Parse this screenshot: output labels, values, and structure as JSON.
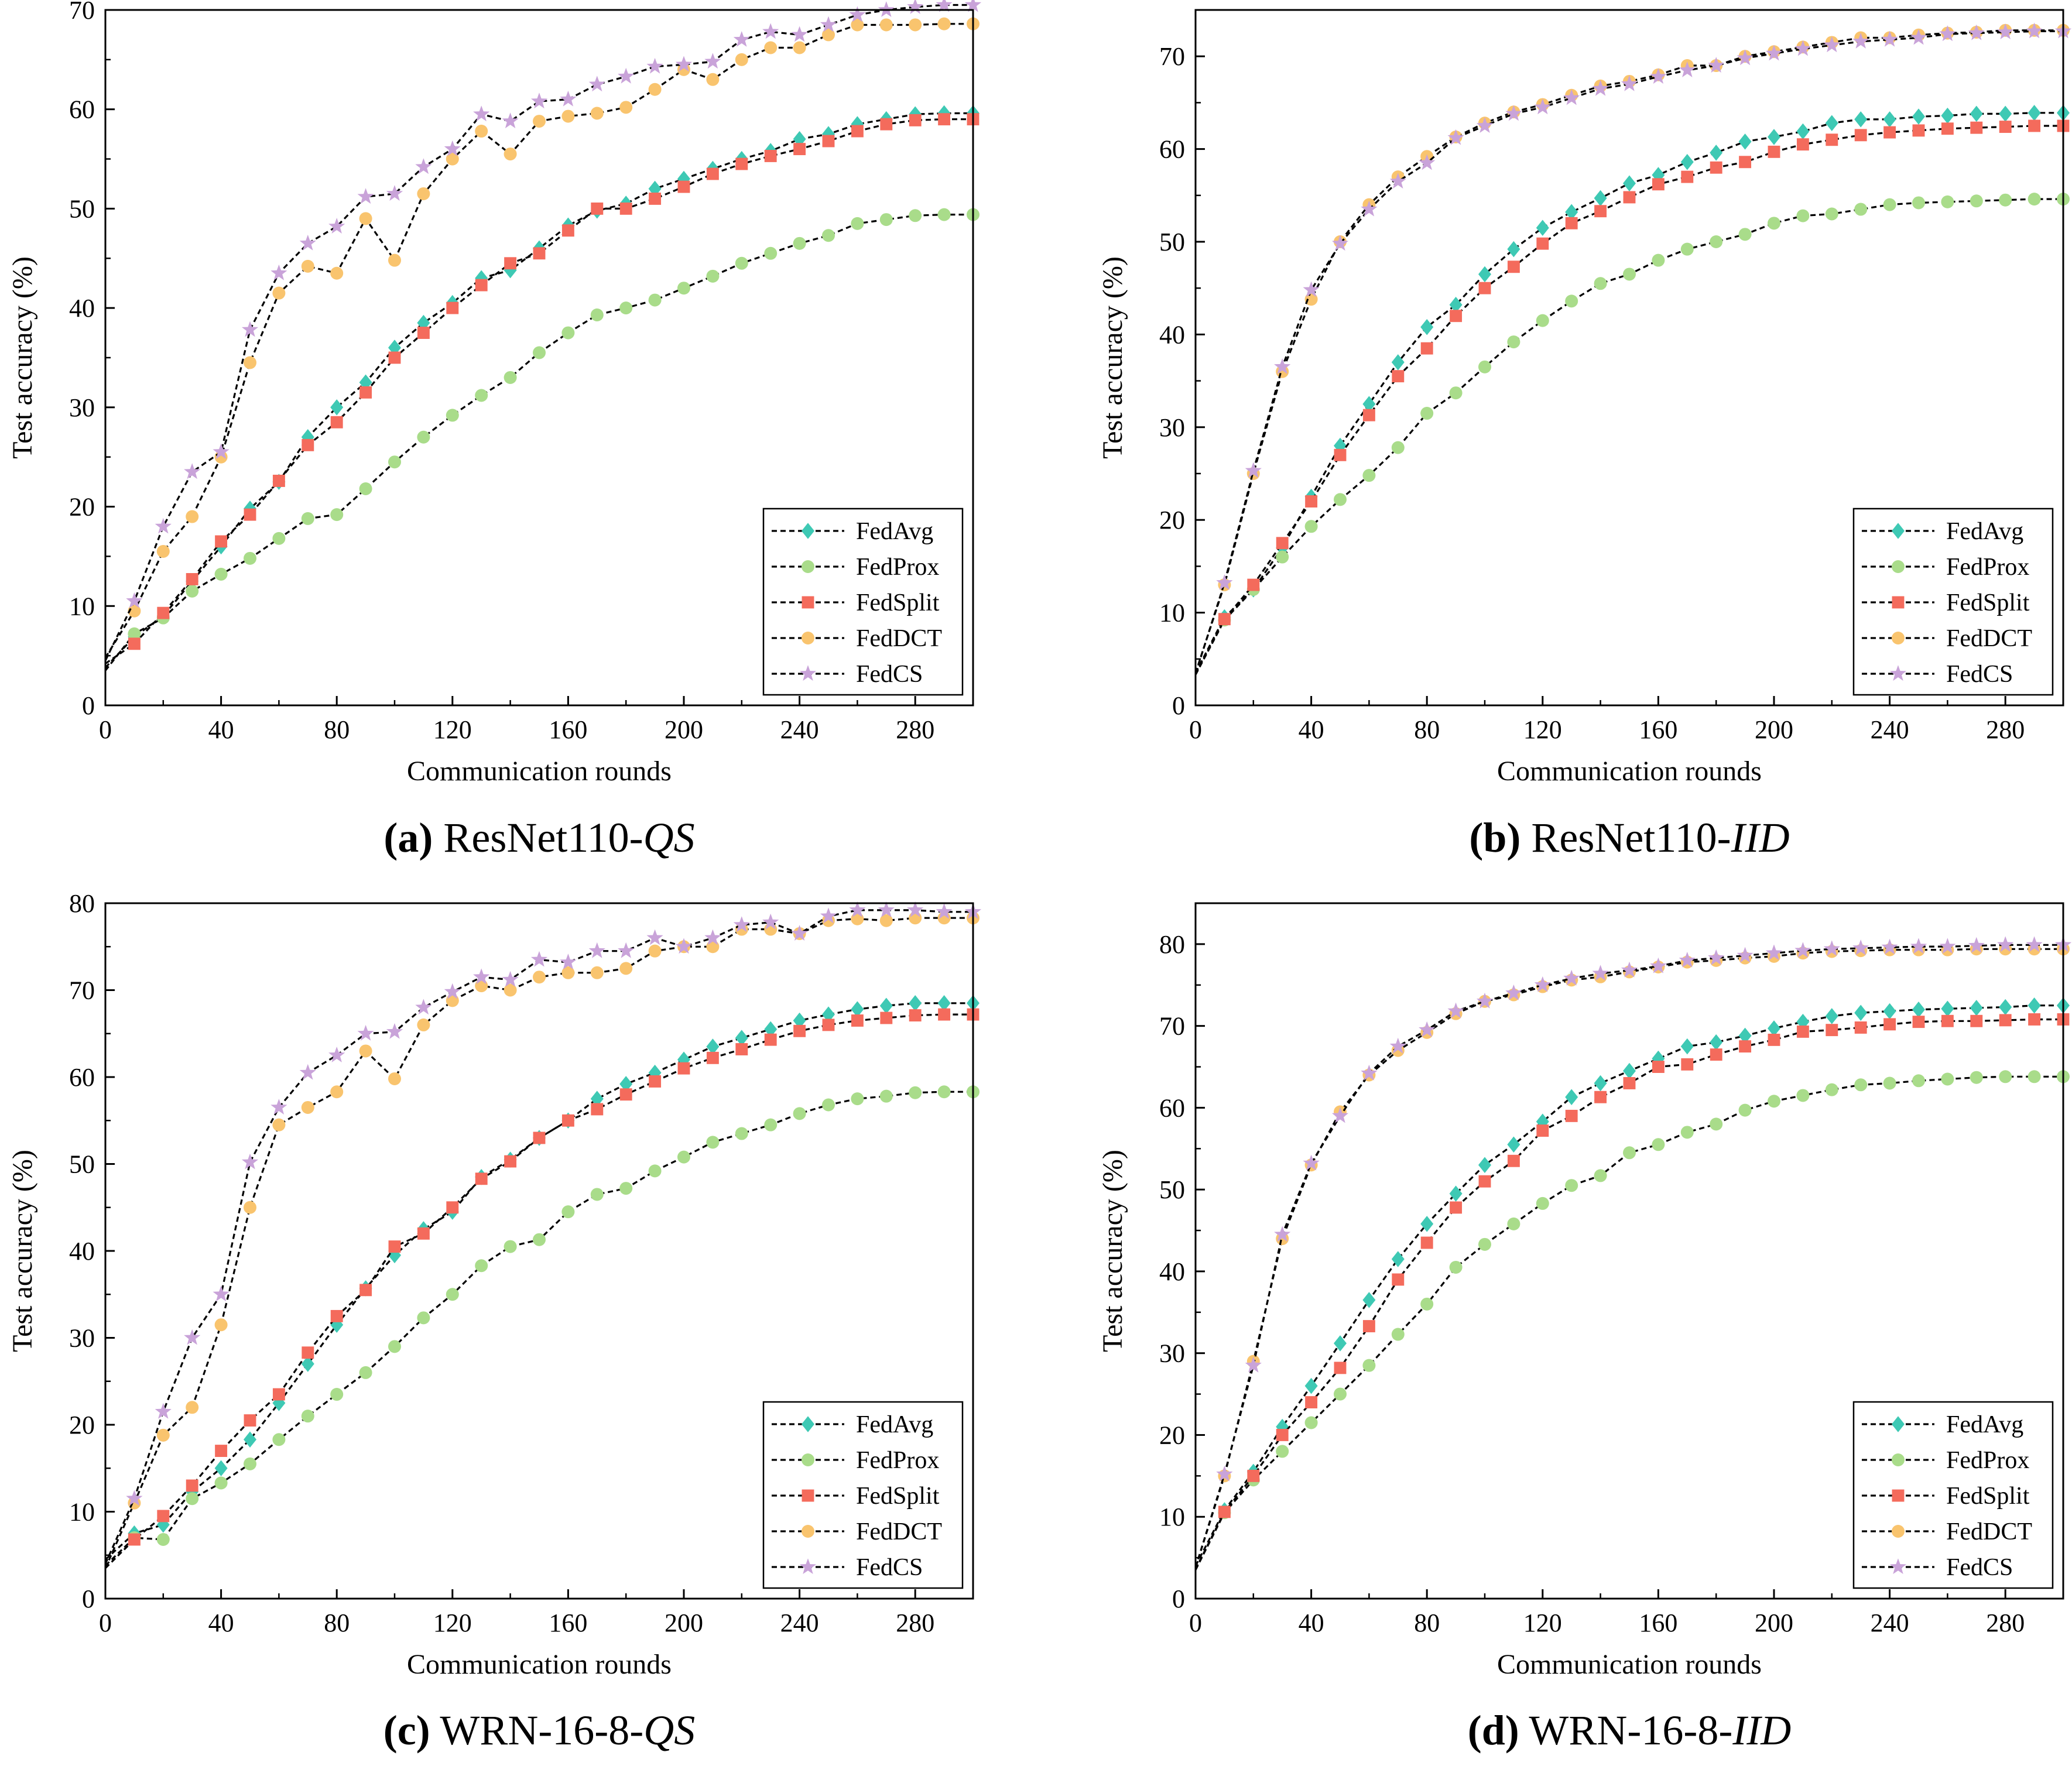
{
  "colors": {
    "FedAvg": "#3ec9b4",
    "FedProx": "#a9dc8a",
    "FedSplit": "#f46b5c",
    "FedDCT": "#f9c46e",
    "FedCS": "#c9a3d9",
    "line": "#000000"
  },
  "markers": {
    "FedAvg": "diamond",
    "FedProx": "circle",
    "FedSplit": "square",
    "FedDCT": "circle",
    "FedCS": "star"
  },
  "chart_data": [
    {
      "type": "line",
      "caption": {
        "letter": "(a)",
        "text": " ResNet110-",
        "italic": "QS"
      },
      "xlabel": "Communication rounds",
      "ylabel": "Test accuracy (%)",
      "xlim": [
        0,
        300
      ],
      "ylim": [
        0,
        70
      ],
      "xticks": [
        "0",
        "40",
        "80",
        "120",
        "160",
        "200",
        "240",
        "280"
      ],
      "yticks": [
        "0",
        "10",
        "20",
        "30",
        "40",
        "50",
        "60",
        "70"
      ],
      "legend": "bottom-right",
      "x": [
        0,
        10,
        20,
        30,
        40,
        50,
        60,
        70,
        80,
        90,
        100,
        110,
        120,
        130,
        140,
        150,
        160,
        170,
        180,
        190,
        200,
        210,
        220,
        230,
        240,
        250,
        260,
        270,
        280,
        290,
        300
      ],
      "series": [
        {
          "name": "FedAvg",
          "values": [
            3.8,
            6.9,
            9.0,
            12.5,
            16.0,
            19.8,
            22.5,
            27.0,
            30.0,
            32.5,
            36.0,
            38.5,
            40.5,
            43.0,
            43.8,
            46.0,
            48.3,
            49.8,
            50.5,
            52.0,
            53.0,
            54.0,
            55.0,
            55.8,
            57.0,
            57.5,
            58.5,
            59.0,
            59.5,
            59.6,
            59.6
          ]
        },
        {
          "name": "FedProx",
          "values": [
            3.5,
            7.2,
            8.8,
            11.5,
            13.2,
            14.8,
            16.8,
            18.8,
            19.2,
            21.8,
            24.5,
            27.0,
            29.2,
            31.2,
            33.0,
            35.5,
            37.5,
            39.3,
            40.0,
            40.8,
            42.0,
            43.2,
            44.5,
            45.5,
            46.5,
            47.3,
            48.5,
            48.9,
            49.3,
            49.4,
            49.4
          ]
        },
        {
          "name": "FedSplit",
          "values": [
            4.2,
            6.2,
            9.3,
            12.7,
            16.5,
            19.2,
            22.6,
            26.2,
            28.5,
            31.5,
            35.0,
            37.5,
            40.0,
            42.3,
            44.5,
            45.5,
            47.8,
            50.0,
            50.0,
            51.0,
            52.2,
            53.5,
            54.5,
            55.3,
            56.0,
            56.8,
            57.8,
            58.5,
            58.9,
            59.0,
            59.0
          ]
        },
        {
          "name": "FedDCT",
          "values": [
            4.8,
            9.5,
            15.5,
            19.0,
            25.0,
            34.5,
            41.5,
            44.2,
            43.5,
            49.0,
            44.8,
            51.5,
            55.0,
            57.8,
            55.5,
            58.8,
            59.3,
            59.6,
            60.2,
            62.0,
            64.0,
            63.0,
            65.0,
            66.2,
            66.2,
            67.5,
            68.5,
            68.5,
            68.5,
            68.6,
            68.6
          ]
        },
        {
          "name": "FedCS",
          "values": [
            4.5,
            10.5,
            18.0,
            23.5,
            25.5,
            37.8,
            43.5,
            46.5,
            48.2,
            51.2,
            51.5,
            54.2,
            56.0,
            59.5,
            58.8,
            60.8,
            61.0,
            62.5,
            63.3,
            64.3,
            64.5,
            64.8,
            67.0,
            67.8,
            67.5,
            68.5,
            69.5,
            70.0,
            70.3,
            70.5,
            70.5
          ]
        }
      ]
    },
    {
      "type": "line",
      "caption": {
        "letter": "(b)",
        "text": " ResNet110-",
        "italic": "IID"
      },
      "xlabel": "Communication rounds",
      "ylabel": "Test accuracy (%)",
      "xlim": [
        0,
        300
      ],
      "ylim": [
        0,
        75
      ],
      "xticks": [
        "0",
        "40",
        "80",
        "120",
        "160",
        "200",
        "240",
        "280"
      ],
      "yticks": [
        "0",
        "10",
        "20",
        "30",
        "40",
        "50",
        "60",
        "70"
      ],
      "legend": "bottom-right",
      "x": [
        0,
        10,
        20,
        30,
        40,
        50,
        60,
        70,
        80,
        90,
        100,
        110,
        120,
        130,
        140,
        150,
        160,
        170,
        180,
        190,
        200,
        210,
        220,
        230,
        240,
        250,
        260,
        270,
        280,
        290,
        300
      ],
      "series": [
        {
          "name": "FedAvg",
          "values": [
            3.5,
            9.5,
            12.5,
            17.0,
            22.5,
            28.0,
            32.5,
            37.0,
            40.8,
            43.2,
            46.5,
            49.2,
            51.5,
            53.2,
            54.7,
            56.3,
            57.2,
            58.6,
            59.6,
            60.8,
            61.3,
            61.9,
            62.8,
            63.2,
            63.2,
            63.5,
            63.6,
            63.8,
            63.8,
            63.9,
            63.9
          ]
        },
        {
          "name": "FedProx",
          "values": [
            3.3,
            9.2,
            12.5,
            16.0,
            19.3,
            22.2,
            24.8,
            27.8,
            31.5,
            33.7,
            36.5,
            39.2,
            41.5,
            43.6,
            45.5,
            46.5,
            48.0,
            49.2,
            50.0,
            50.8,
            52.0,
            52.8,
            53.0,
            53.5,
            54.0,
            54.2,
            54.3,
            54.4,
            54.5,
            54.6,
            54.6
          ]
        },
        {
          "name": "FedSplit",
          "values": [
            3.4,
            9.3,
            13.0,
            17.5,
            22.0,
            27.0,
            31.3,
            35.5,
            38.5,
            42.0,
            45.0,
            47.3,
            49.8,
            52.0,
            53.3,
            54.8,
            56.2,
            57.0,
            58.0,
            58.6,
            59.7,
            60.5,
            61.0,
            61.5,
            61.8,
            62.0,
            62.2,
            62.3,
            62.4,
            62.5,
            62.5
          ]
        },
        {
          "name": "FedDCT",
          "values": [
            3.5,
            13.0,
            25.0,
            36.0,
            43.8,
            50.0,
            54.0,
            57.0,
            59.2,
            61.3,
            62.8,
            64.0,
            64.8,
            65.8,
            66.8,
            67.3,
            68.0,
            69.0,
            69.0,
            70.0,
            70.5,
            71.0,
            71.5,
            72.0,
            72.0,
            72.3,
            72.5,
            72.6,
            72.8,
            72.8,
            72.8
          ]
        },
        {
          "name": "FedCS",
          "values": [
            3.4,
            13.2,
            25.3,
            36.5,
            44.8,
            49.8,
            53.5,
            56.5,
            58.5,
            61.2,
            62.5,
            63.8,
            64.5,
            65.5,
            66.5,
            67.0,
            67.8,
            68.5,
            69.0,
            69.8,
            70.3,
            70.8,
            71.2,
            71.6,
            71.8,
            72.0,
            72.4,
            72.5,
            72.6,
            72.7,
            72.7
          ]
        }
      ]
    },
    {
      "type": "line",
      "caption": {
        "letter": "(c)",
        "text": " WRN-16-8-",
        "italic": "QS"
      },
      "xlabel": "Communication rounds",
      "ylabel": "Test accuracy (%)",
      "xlim": [
        0,
        300
      ],
      "ylim": [
        0,
        80
      ],
      "xticks": [
        "0",
        "40",
        "80",
        "120",
        "160",
        "200",
        "240",
        "280"
      ],
      "yticks": [
        "0",
        "10",
        "20",
        "30",
        "40",
        "50",
        "60",
        "70",
        "80"
      ],
      "legend": "bottom-right",
      "x": [
        0,
        10,
        20,
        30,
        40,
        50,
        60,
        70,
        80,
        90,
        100,
        110,
        120,
        130,
        140,
        150,
        160,
        170,
        180,
        190,
        200,
        210,
        220,
        230,
        240,
        250,
        260,
        270,
        280,
        290,
        300
      ],
      "series": [
        {
          "name": "FedAvg",
          "values": [
            4.5,
            7.5,
            8.5,
            12.3,
            15.0,
            18.3,
            22.5,
            27.0,
            31.5,
            35.7,
            39.5,
            42.5,
            44.5,
            48.5,
            50.5,
            53.0,
            55.0,
            57.5,
            59.2,
            60.5,
            62.0,
            63.5,
            64.5,
            65.5,
            66.5,
            67.2,
            67.8,
            68.2,
            68.5,
            68.5,
            68.5
          ]
        },
        {
          "name": "FedProx",
          "values": [
            3.8,
            7.0,
            6.8,
            11.5,
            13.3,
            15.5,
            18.3,
            21.0,
            23.5,
            26.0,
            29.0,
            32.3,
            35.0,
            38.3,
            40.5,
            41.3,
            44.5,
            46.5,
            47.2,
            49.2,
            50.8,
            52.5,
            53.5,
            54.5,
            55.8,
            56.8,
            57.5,
            57.8,
            58.2,
            58.3,
            58.3
          ]
        },
        {
          "name": "FedSplit",
          "values": [
            3.5,
            6.8,
            9.5,
            13.0,
            17.0,
            20.5,
            23.5,
            28.3,
            32.5,
            35.5,
            40.5,
            42.0,
            45.0,
            48.3,
            50.3,
            53.0,
            55.0,
            56.3,
            58.0,
            59.5,
            61.0,
            62.2,
            63.2,
            64.3,
            65.3,
            66.0,
            66.5,
            66.8,
            67.1,
            67.2,
            67.2
          ]
        },
        {
          "name": "FedDCT",
          "values": [
            3.5,
            11.0,
            18.8,
            22.0,
            31.5,
            45.0,
            54.5,
            56.5,
            58.3,
            63.0,
            59.8,
            66.0,
            68.8,
            70.5,
            70.0,
            71.5,
            72.0,
            72.0,
            72.5,
            74.5,
            75.0,
            75.0,
            77.0,
            77.0,
            76.5,
            78.0,
            78.2,
            78.0,
            78.3,
            78.3,
            78.3
          ]
        },
        {
          "name": "FedCS",
          "values": [
            4.0,
            11.5,
            21.5,
            30.0,
            35.0,
            50.2,
            56.5,
            60.5,
            62.5,
            65.0,
            65.2,
            68.0,
            69.8,
            71.5,
            71.2,
            73.5,
            73.2,
            74.5,
            74.5,
            76.0,
            75.0,
            76.0,
            77.5,
            77.8,
            76.5,
            78.5,
            79.2,
            79.2,
            79.2,
            79.0,
            79.0
          ]
        }
      ]
    },
    {
      "type": "line",
      "caption": {
        "letter": "(d)",
        "text": " WRN-16-8-",
        "italic": "IID"
      },
      "xlabel": "Communication rounds",
      "ylabel": "Test accuracy (%)",
      "xlim": [
        0,
        300
      ],
      "ylim": [
        0,
        85
      ],
      "xticks": [
        "0",
        "40",
        "80",
        "120",
        "160",
        "200",
        "240",
        "280"
      ],
      "yticks": [
        "0",
        "10",
        "20",
        "30",
        "40",
        "50",
        "60",
        "70",
        "80"
      ],
      "legend": "bottom-right",
      "x": [
        0,
        10,
        20,
        30,
        40,
        50,
        60,
        70,
        80,
        90,
        100,
        110,
        120,
        130,
        140,
        150,
        160,
        170,
        180,
        190,
        200,
        210,
        220,
        230,
        240,
        250,
        260,
        270,
        280,
        290,
        300
      ],
      "series": [
        {
          "name": "FedAvg",
          "values": [
            4.0,
            10.8,
            15.5,
            21.0,
            26.0,
            31.2,
            36.5,
            41.5,
            45.8,
            49.5,
            53.0,
            55.5,
            58.3,
            61.3,
            63.0,
            64.5,
            66.0,
            67.5,
            68.0,
            68.8,
            69.7,
            70.5,
            71.2,
            71.6,
            71.8,
            72.0,
            72.1,
            72.2,
            72.3,
            72.5,
            72.5
          ]
        },
        {
          "name": "FedProx",
          "values": [
            3.5,
            10.5,
            14.5,
            18.0,
            21.5,
            25.0,
            28.5,
            32.3,
            36.0,
            40.5,
            43.3,
            45.8,
            48.3,
            50.5,
            51.7,
            54.5,
            55.5,
            57.0,
            58.0,
            59.7,
            60.8,
            61.5,
            62.2,
            62.8,
            63.0,
            63.3,
            63.5,
            63.7,
            63.8,
            63.8,
            63.8
          ]
        },
        {
          "name": "FedSplit",
          "values": [
            3.6,
            10.6,
            15.0,
            20.0,
            24.0,
            28.2,
            33.3,
            39.0,
            43.5,
            47.8,
            51.0,
            53.5,
            57.2,
            59.0,
            61.3,
            63.0,
            65.0,
            65.3,
            66.5,
            67.5,
            68.3,
            69.3,
            69.5,
            69.8,
            70.2,
            70.5,
            70.6,
            70.6,
            70.7,
            70.8,
            70.8
          ]
        },
        {
          "name": "FedDCT",
          "values": [
            3.8,
            15.0,
            29.0,
            44.0,
            53.0,
            59.5,
            64.0,
            67.0,
            69.2,
            71.5,
            73.0,
            73.8,
            74.8,
            75.6,
            76.0,
            76.6,
            77.2,
            77.8,
            78.0,
            78.3,
            78.5,
            78.9,
            79.1,
            79.2,
            79.3,
            79.3,
            79.3,
            79.4,
            79.4,
            79.4,
            79.4
          ]
        },
        {
          "name": "FedCS",
          "values": [
            3.8,
            15.2,
            28.5,
            44.5,
            53.2,
            59.0,
            64.2,
            67.5,
            69.5,
            71.8,
            73.0,
            74.0,
            75.0,
            75.8,
            76.4,
            76.8,
            77.3,
            78.0,
            78.3,
            78.6,
            78.9,
            79.2,
            79.4,
            79.5,
            79.6,
            79.7,
            79.7,
            79.8,
            79.9,
            79.9,
            79.9
          ]
        }
      ]
    }
  ]
}
